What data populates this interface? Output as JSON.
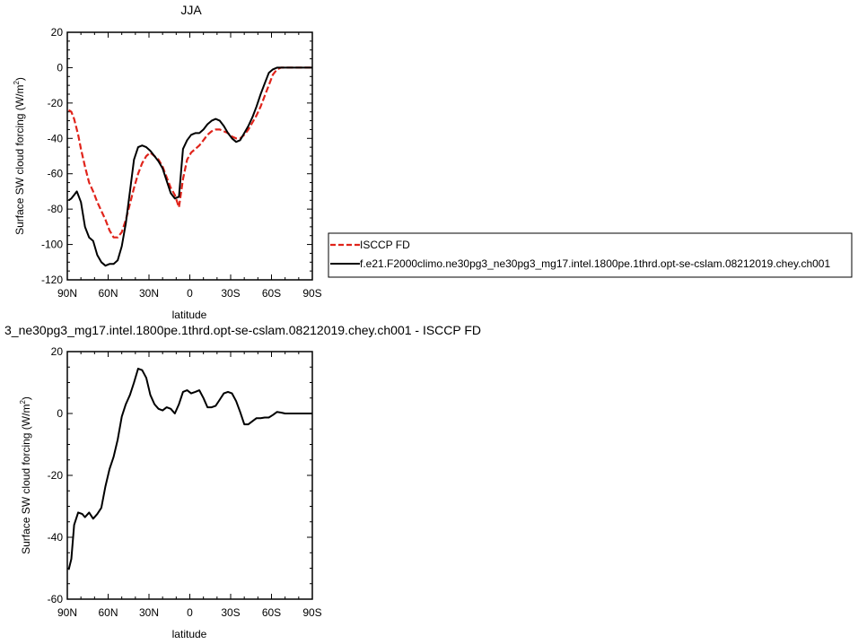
{
  "chart_data": [
    {
      "type": "line",
      "title": "JJA",
      "xlabel": "latitude",
      "ylabel": {
        "text": "Surface SW cloud forcing (W/m",
        "sup": "2",
        "end": ")"
      },
      "xlim": [
        -90,
        90
      ],
      "ylim": [
        -120,
        20
      ],
      "xticks": [
        -90,
        -60,
        -30,
        0,
        30,
        60,
        90
      ],
      "xtick_labels": [
        "90N",
        "60N",
        "30N",
        "0",
        "30S",
        "60S",
        "90S"
      ],
      "yticks": [
        -120,
        -100,
        -80,
        -60,
        -40,
        -20,
        0,
        20
      ],
      "ytick_labels": [
        "-120",
        "-100",
        "-80",
        "-60",
        "-40",
        "-20",
        "0",
        "20"
      ],
      "grid": false,
      "legend": "right",
      "series": [
        {
          "name": "ISCCP FD",
          "color": "#e0241b",
          "dash": "dashed",
          "x": [
            -89,
            -87,
            -85,
            -82,
            -80,
            -77,
            -74,
            -71,
            -68,
            -65,
            -62,
            -59,
            -56,
            -53,
            -50,
            -47,
            -44,
            -41,
            -38,
            -35,
            -32,
            -29,
            -26,
            -23,
            -20,
            -17,
            -14,
            -11,
            -8,
            -5,
            -2,
            1,
            4,
            7,
            10,
            13,
            16,
            19,
            22,
            25,
            28,
            31,
            34,
            37,
            40,
            43,
            46,
            49,
            52,
            55,
            58,
            61,
            64,
            67,
            70,
            73,
            76,
            79,
            82,
            85,
            88,
            90
          ],
          "values": [
            -24,
            -25,
            -29,
            -38,
            -46,
            -56,
            -65,
            -70,
            -76,
            -81,
            -86,
            -92,
            -96,
            -96,
            -93,
            -86,
            -77,
            -68,
            -60,
            -54,
            -50,
            -48,
            -50,
            -52,
            -56,
            -62,
            -68,
            -72,
            -79,
            -63,
            -52,
            -48,
            -46,
            -44,
            -41,
            -38,
            -36,
            -35,
            -35,
            -36,
            -37,
            -39,
            -40,
            -40,
            -38,
            -35,
            -31,
            -27,
            -22,
            -16,
            -10,
            -4,
            -1,
            0,
            0,
            0,
            0,
            0,
            0,
            0,
            0,
            0
          ]
        },
        {
          "name": "f.e21.F2000climo.ne30pg3_ne30pg3_mg17.intel.1800pe.1thrd.opt-se-cslam.08212019.chey.ch001",
          "color": "#000000",
          "dash": "solid",
          "x": [
            -89,
            -87,
            -85,
            -83,
            -80,
            -77,
            -74,
            -71,
            -68,
            -65,
            -62,
            -59,
            -56,
            -53,
            -50,
            -47,
            -44,
            -41,
            -38,
            -35,
            -32,
            -29,
            -26,
            -23,
            -20,
            -17,
            -14,
            -11,
            -8,
            -5,
            -2,
            1,
            4,
            7,
            10,
            13,
            16,
            19,
            22,
            25,
            28,
            31,
            34,
            37,
            40,
            43,
            46,
            49,
            52,
            55,
            58,
            61,
            64,
            67,
            70,
            73,
            76,
            79,
            82,
            85,
            88,
            90
          ],
          "values": [
            -75,
            -74,
            -72,
            -70,
            -76,
            -90,
            -96,
            -98,
            -106,
            -110,
            -112,
            -111,
            -111,
            -109,
            -101,
            -88,
            -70,
            -52,
            -45,
            -44,
            -45,
            -47,
            -50,
            -53,
            -57,
            -64,
            -71,
            -74,
            -73,
            -46,
            -41,
            -38,
            -37,
            -37,
            -35,
            -32,
            -30,
            -29,
            -30,
            -33,
            -37,
            -40,
            -42,
            -41,
            -37,
            -33,
            -28,
            -22,
            -15,
            -9,
            -3,
            -1,
            0,
            0,
            0,
            0,
            0,
            0,
            0,
            0,
            0,
            0
          ]
        }
      ]
    },
    {
      "type": "line",
      "title": "3_ne30pg3_mg17.intel.1800pe.1thrd.opt-se-cslam.08212019.chey.ch001 - ISCCP FD",
      "xlabel": "latitude",
      "ylabel": {
        "text": "Surface SW cloud forcing (W/m",
        "sup": "2",
        "end": ")"
      },
      "xlim": [
        -90,
        90
      ],
      "ylim": [
        -60,
        20
      ],
      "xticks": [
        -90,
        -60,
        -30,
        0,
        30,
        60,
        90
      ],
      "xtick_labels": [
        "90N",
        "60N",
        "30N",
        "0",
        "30S",
        "60S",
        "90S"
      ],
      "yticks": [
        -60,
        -40,
        -20,
        0,
        20
      ],
      "ytick_labels": [
        "-60",
        "-40",
        "-20",
        "0",
        "20"
      ],
      "grid": false,
      "series": [
        {
          "color": "#000000",
          "dash": "solid",
          "x": [
            -89,
            -87,
            -85,
            -82,
            -79,
            -77,
            -74,
            -71,
            -68,
            -65,
            -62,
            -59,
            -56,
            -53,
            -50,
            -47,
            -44,
            -41,
            -38,
            -35,
            -32,
            -29,
            -26,
            -23,
            -20,
            -17,
            -14,
            -11,
            -8,
            -5,
            -2,
            1,
            4,
            7,
            10,
            13,
            16,
            19,
            22,
            25,
            28,
            31,
            34,
            37,
            40,
            43,
            46,
            49,
            52,
            55,
            58,
            61,
            64,
            67,
            70,
            73,
            76,
            79,
            82,
            85,
            88,
            90
          ],
          "values": [
            -50.5,
            -47,
            -36,
            -32,
            -32.5,
            -33.5,
            -32,
            -34,
            -32.5,
            -30.5,
            -23.5,
            -18,
            -14,
            -8.5,
            -1,
            3,
            6,
            10,
            14.5,
            14,
            11.5,
            6,
            3,
            1.5,
            1,
            2,
            1.5,
            0,
            3,
            7,
            7.5,
            6.5,
            7,
            7.5,
            5,
            2,
            2,
            2.5,
            4.5,
            6.5,
            7,
            6.5,
            4,
            0.5,
            -3.5,
            -3.5,
            -2.5,
            -1.5,
            -1.5,
            -1.3,
            -1.3,
            -0.5,
            0.5,
            0.3,
            0,
            0,
            0,
            0,
            0,
            0,
            0,
            0
          ]
        }
      ]
    }
  ]
}
